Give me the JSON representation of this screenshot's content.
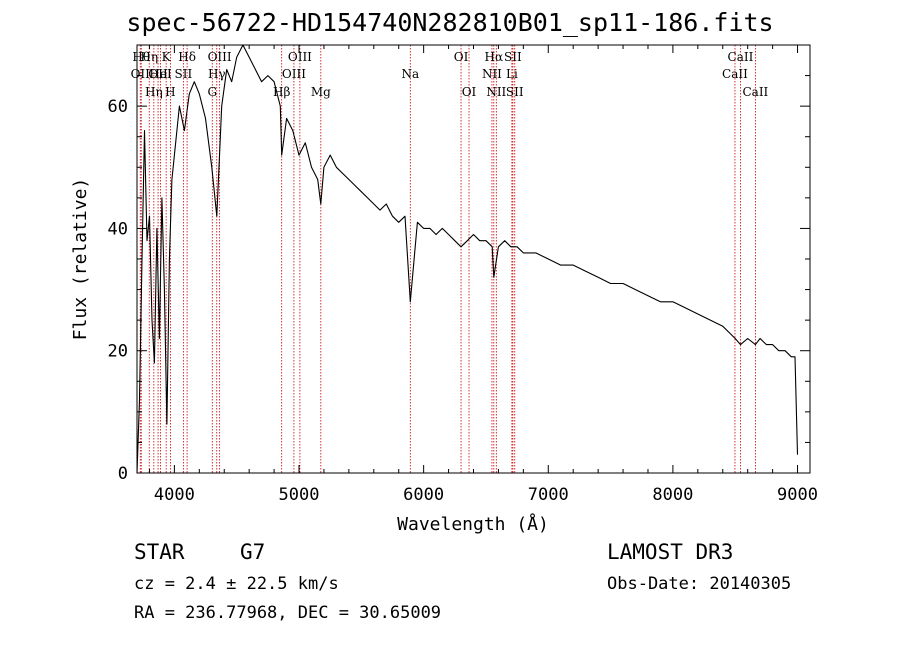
{
  "chart_data": {
    "type": "line",
    "title": "spec-56722-HD154740N282810B01_sp11-186.fits",
    "xlabel": "Wavelength (Å)",
    "ylabel": "Flux (relative)",
    "xlim": [
      3700,
      9100
    ],
    "ylim": [
      0,
      70
    ],
    "x_ticks": [
      4000,
      5000,
      6000,
      7000,
      8000,
      9000
    ],
    "x_tick_labels": [
      "4000",
      "5000",
      "6000",
      "7000",
      "8000",
      "9000"
    ],
    "y_ticks": [
      0,
      20,
      40,
      60
    ],
    "y_tick_labels": [
      "0",
      "20",
      "40",
      "60"
    ],
    "grid": false,
    "series": [
      {
        "color": "#000000",
        "x": [
          3700,
          3720,
          3740,
          3760,
          3780,
          3800,
          3820,
          3840,
          3860,
          3880,
          3900,
          3920,
          3940,
          3960,
          3980,
          4000,
          4040,
          4080,
          4120,
          4160,
          4200,
          4250,
          4300,
          4340,
          4380,
          4420,
          4460,
          4500,
          4550,
          4600,
          4650,
          4700,
          4750,
          4800,
          4850,
          4861,
          4900,
          4950,
          5000,
          5050,
          5100,
          5150,
          5175,
          5200,
          5250,
          5300,
          5350,
          5400,
          5450,
          5500,
          5550,
          5600,
          5650,
          5700,
          5750,
          5800,
          5850,
          5893,
          5950,
          6000,
          6050,
          6100,
          6150,
          6200,
          6250,
          6300,
          6350,
          6400,
          6450,
          6500,
          6550,
          6563,
          6600,
          6650,
          6700,
          6750,
          6800,
          6900,
          7000,
          7100,
          7200,
          7300,
          7400,
          7500,
          7600,
          7700,
          7800,
          7900,
          8000,
          8100,
          8200,
          8300,
          8400,
          8450,
          8500,
          8542,
          8600,
          8662,
          8700,
          8750,
          8800,
          8850,
          8900,
          8950,
          8980,
          9000
        ],
        "y": [
          0,
          12,
          35,
          56,
          38,
          42,
          25,
          18,
          40,
          22,
          45,
          30,
          8,
          35,
          48,
          52,
          60,
          56,
          62,
          64,
          62,
          58,
          50,
          42,
          60,
          66,
          64,
          68,
          70,
          68,
          66,
          64,
          65,
          64,
          60,
          52,
          58,
          56,
          52,
          54,
          50,
          48,
          44,
          50,
          52,
          50,
          49,
          48,
          47,
          46,
          45,
          44,
          43,
          44,
          42,
          41,
          42,
          28,
          41,
          40,
          40,
          39,
          40,
          39,
          38,
          37,
          38,
          39,
          38,
          38,
          37,
          32,
          37,
          38,
          37,
          37,
          36,
          36,
          35,
          34,
          34,
          33,
          32,
          31,
          31,
          30,
          29,
          28,
          28,
          27,
          26,
          25,
          24,
          23,
          22,
          21,
          22,
          21,
          22,
          21,
          21,
          20,
          20,
          19,
          19,
          3
        ]
      }
    ],
    "line_markers": [
      {
        "wavelength": 3726,
        "label": "OII",
        "row": 2
      },
      {
        "wavelength": 3734,
        "label": "Hθ",
        "row": 1
      },
      {
        "wavelength": 3798,
        "label": "Hη",
        "row": 1
      },
      {
        "wavelength": 3835,
        "label": "Hη",
        "row": 3
      },
      {
        "wavelength": 3869,
        "label": "OII",
        "row": 2
      },
      {
        "wavelength": 3889,
        "label": "HeI",
        "row": 2
      },
      {
        "wavelength": 3934,
        "label": "K",
        "row": 1
      },
      {
        "wavelength": 3968,
        "label": "H",
        "row": 3
      },
      {
        "wavelength": 4072,
        "label": "SII",
        "row": 2
      },
      {
        "wavelength": 4102,
        "label": "Hδ",
        "row": 1
      },
      {
        "wavelength": 4304,
        "label": "G",
        "row": 3
      },
      {
        "wavelength": 4340,
        "label": "Hγ",
        "row": 2
      },
      {
        "wavelength": 4363,
        "label": "OIII",
        "row": 1
      },
      {
        "wavelength": 4861,
        "label": "Hβ",
        "row": 3
      },
      {
        "wavelength": 4959,
        "label": "OIII",
        "row": 2
      },
      {
        "wavelength": 5007,
        "label": "OIII",
        "row": 1
      },
      {
        "wavelength": 5175,
        "label": "Mg",
        "row": 3
      },
      {
        "wavelength": 5893,
        "label": "Na",
        "row": 2
      },
      {
        "wavelength": 6300,
        "label": "OI",
        "row": 1
      },
      {
        "wavelength": 6364,
        "label": "OI",
        "row": 3
      },
      {
        "wavelength": 6548,
        "label": "NII",
        "row": 2
      },
      {
        "wavelength": 6563,
        "label": "Hα",
        "row": 1
      },
      {
        "wavelength": 6583,
        "label": "NII",
        "row": 3
      },
      {
        "wavelength": 6708,
        "label": "Li",
        "row": 2
      },
      {
        "wavelength": 6716,
        "label": "SII",
        "row": 1
      },
      {
        "wavelength": 6731,
        "label": "SII",
        "row": 3
      },
      {
        "wavelength": 8498,
        "label": "CaII",
        "row": 2
      },
      {
        "wavelength": 8542,
        "label": "CaII",
        "row": 1
      },
      {
        "wavelength": 8662,
        "label": "CaII",
        "row": 3
      }
    ],
    "marker_color": "#cc0000"
  },
  "info": {
    "object_type": "STAR",
    "subclass": "G7",
    "redshift": "cz = 2.4 ± 22.5 km/s",
    "coords": "RA = 236.77968, DEC =  30.65009",
    "survey": "LAMOST DR3",
    "obs_date": "Obs-Date: 20140305"
  }
}
